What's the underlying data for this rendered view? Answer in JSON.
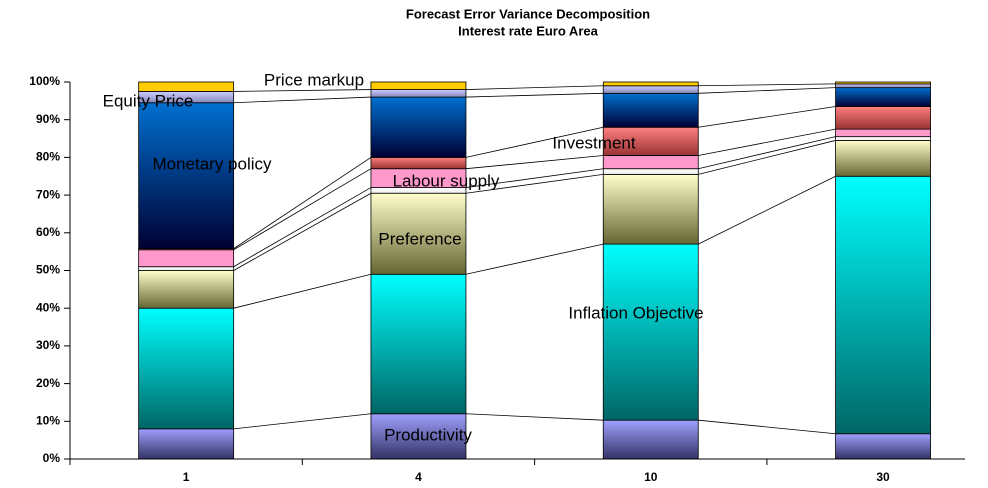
{
  "chart_data": {
    "type": "stacked_bar",
    "title": "Forecast Error Variance Decomposition",
    "subtitle": "Interest rate Euro Area",
    "categories": [
      "1",
      "4",
      "10",
      "30"
    ],
    "ylim": [
      0,
      100
    ],
    "yticks": [
      {
        "value": 0,
        "label": "0%"
      },
      {
        "value": 10,
        "label": "10%"
      },
      {
        "value": 20,
        "label": "20%"
      },
      {
        "value": 30,
        "label": "30%"
      },
      {
        "value": 40,
        "label": "40%"
      },
      {
        "value": 50,
        "label": "50%"
      },
      {
        "value": 60,
        "label": "60%"
      },
      {
        "value": 70,
        "label": "70%"
      },
      {
        "value": 80,
        "label": "80%"
      },
      {
        "value": 90,
        "label": "90%"
      },
      {
        "value": 100,
        "label": "100%"
      }
    ],
    "series": [
      {
        "name": "Productivity",
        "color": "#a0a0ff",
        "color_dark": "#333366",
        "values": [
          8,
          12,
          10.3,
          6.7
        ]
      },
      {
        "name": "Inflation Objective",
        "color": "#00ffff",
        "color_dark": "#006666",
        "values": [
          32,
          37,
          46.7,
          68.3
        ]
      },
      {
        "name": "Preference",
        "color": "#ffffcc",
        "color_dark": "#666633",
        "values": [
          10,
          21.5,
          18.5,
          9.5
        ]
      },
      {
        "name": null,
        "color": "#ffffff",
        "color_dark": "#eeeeee",
        "values": [
          1,
          1.5,
          1.5,
          1
        ]
      },
      {
        "name": "Labour supply",
        "color": "#ff99cc",
        "color_dark": "#ff99cc",
        "values": [
          4.5,
          5,
          3.5,
          2
        ]
      },
      {
        "name": "Investment",
        "color": "#ff8080",
        "color_dark": "#993333",
        "values": [
          0.3,
          3,
          7.5,
          6
        ]
      },
      {
        "name": "Monetary policy",
        "color": "#0070d0",
        "color_dark": "#000033",
        "values": [
          38.7,
          16,
          9,
          5
        ]
      },
      {
        "name": "Equity Price",
        "color": "#ccccff",
        "color_dark": "#8888bb",
        "values": [
          3,
          2,
          2,
          1
        ]
      },
      {
        "name": "Price markup",
        "color": "#ffcc00",
        "color_dark": "#ffcc00",
        "values": [
          2.5,
          2,
          1,
          0.5
        ]
      }
    ]
  }
}
